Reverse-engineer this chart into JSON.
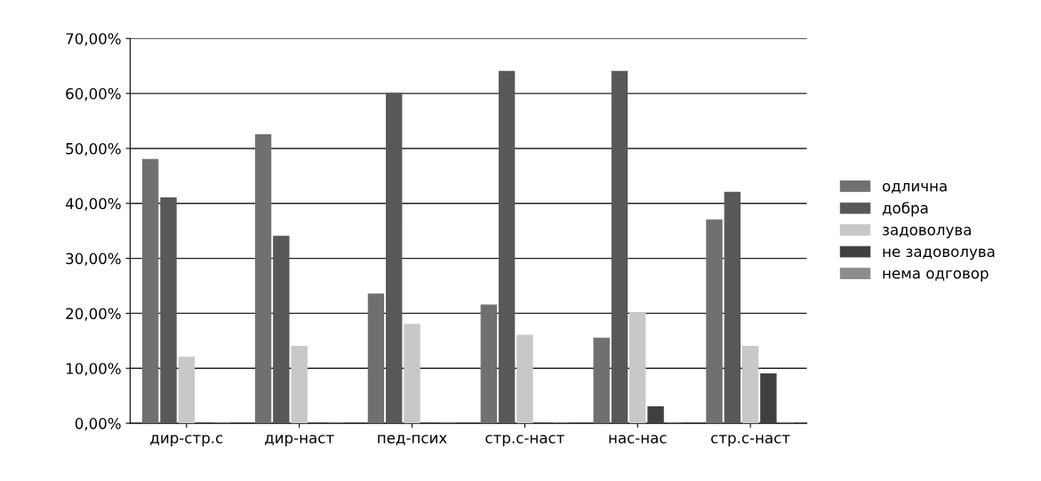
{
  "chart_data": {
    "type": "bar",
    "categories": [
      "дир-стр.с",
      "дир-наст",
      "пед-псих",
      "стр.с-наст",
      "нас-нас",
      "стр.с-наст"
    ],
    "series": [
      {
        "name": "одлична",
        "color": "#707070",
        "values": [
          48,
          52.5,
          23.5,
          21.5,
          15.5,
          37
        ]
      },
      {
        "name": "добра",
        "color": "#585858",
        "values": [
          41,
          34,
          60,
          64,
          64,
          42
        ]
      },
      {
        "name": "задоволува",
        "color": "#c8c8c8",
        "values": [
          12,
          14,
          18,
          16,
          20,
          14
        ]
      },
      {
        "name": "не задоволува",
        "color": "#404040",
        "values": [
          0,
          0,
          0,
          0,
          3,
          9
        ]
      },
      {
        "name": "нема одговор",
        "color": "#8c8c8c",
        "values": [
          0,
          0,
          0,
          0,
          0,
          0
        ]
      }
    ],
    "ylim": [
      0,
      70
    ],
    "yticks": [
      {
        "value": 0,
        "label": "0,00%"
      },
      {
        "value": 10,
        "label": "10,00%"
      },
      {
        "value": 20,
        "label": "20,00%"
      },
      {
        "value": 30,
        "label": "30,00%"
      },
      {
        "value": 40,
        "label": "40,00%"
      },
      {
        "value": 50,
        "label": "50,00%"
      },
      {
        "value": 60,
        "label": "60,00%"
      },
      {
        "value": 70,
        "label": "70,00%"
      }
    ],
    "grid": "y",
    "legend": "right"
  }
}
